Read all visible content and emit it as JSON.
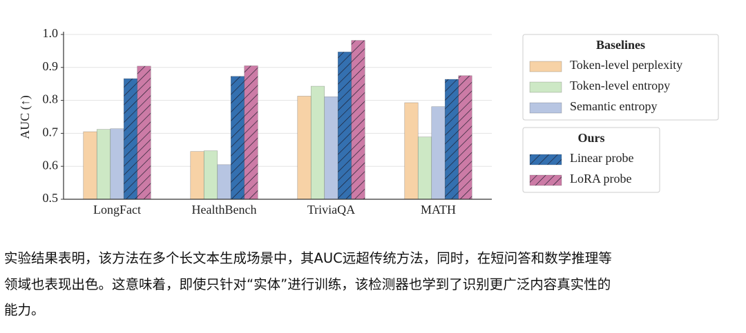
{
  "chart_data": {
    "type": "bar",
    "ylabel": "AUC (↑)",
    "categories": [
      "LongFact",
      "HealthBench",
      "TriviaQA",
      "MATH"
    ],
    "series": [
      {
        "name": "Token-level perplexity",
        "color": "#f7d2a6",
        "hatch": false,
        "values": [
          0.705,
          0.645,
          0.813,
          0.793
        ]
      },
      {
        "name": "Token-level entropy",
        "color": "#cde8c5",
        "hatch": false,
        "values": [
          0.712,
          0.647,
          0.843,
          0.689
        ]
      },
      {
        "name": "Semantic entropy",
        "color": "#b7c5e2",
        "hatch": false,
        "values": [
          0.714,
          0.605,
          0.811,
          0.781
        ]
      },
      {
        "name": "Linear probe",
        "color": "#3470b0",
        "hatch": true,
        "values": [
          0.866,
          0.873,
          0.947,
          0.864
        ]
      },
      {
        "name": "LoRA probe",
        "color": "#cc7ba6",
        "hatch": true,
        "values": [
          0.904,
          0.905,
          0.982,
          0.875
        ]
      }
    ],
    "legend_titles": [
      "Baselines",
      "Ours"
    ],
    "ylim": [
      0.5,
      1.0
    ],
    "yticks": [
      0.5,
      0.6,
      0.7,
      0.8,
      0.9,
      {
        "value": 1,
        "label": "1.0"
      }
    ],
    "grid": true
  },
  "paragraph": {
    "lines": [
      "实验结果表明，该方法在多个长文本生成场景中，其AUC远超传统方法，同时，在短问答和数学推理等",
      "领域也表现出色。这意味着，即使只针对“实体”进行训练，该检测器也学到了识别更广泛内容真实性的",
      "能力。"
    ]
  }
}
